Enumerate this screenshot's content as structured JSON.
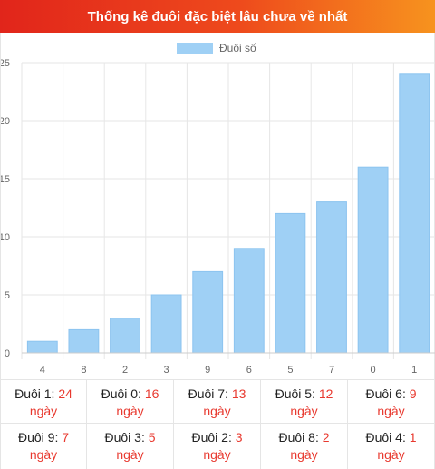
{
  "header": {
    "title": "Thống kê đuôi đặc biệt lâu chưa về nhất"
  },
  "colors": {
    "bar": "#9fd0f5",
    "bar_border": "#8cc4ef",
    "accent": "#e8392f"
  },
  "chart_data": {
    "type": "bar",
    "categories": [
      "4",
      "8",
      "2",
      "3",
      "9",
      "6",
      "5",
      "7",
      "0",
      "1"
    ],
    "series": [
      {
        "name": "Đuôi số",
        "values": [
          1,
          2,
          3,
          5,
          7,
          9,
          12,
          13,
          16,
          24
        ]
      }
    ],
    "ylim": [
      0,
      25
    ],
    "yticks": [
      0,
      5,
      10,
      15,
      20,
      25
    ],
    "grid": true,
    "legend": "top-center"
  },
  "stats": {
    "unit": "ngày",
    "items": [
      {
        "label": "Đuôi 1:",
        "value": "24"
      },
      {
        "label": "Đuôi 0:",
        "value": "16"
      },
      {
        "label": "Đuôi 7:",
        "value": "13"
      },
      {
        "label": "Đuôi 5:",
        "value": "12"
      },
      {
        "label": "Đuôi 6:",
        "value": "9"
      },
      {
        "label": "Đuôi 9:",
        "value": "7"
      },
      {
        "label": "Đuôi 3:",
        "value": "5"
      },
      {
        "label": "Đuôi 2:",
        "value": "3"
      },
      {
        "label": "Đuôi 8:",
        "value": "2"
      },
      {
        "label": "Đuôi 4:",
        "value": "1"
      }
    ]
  }
}
